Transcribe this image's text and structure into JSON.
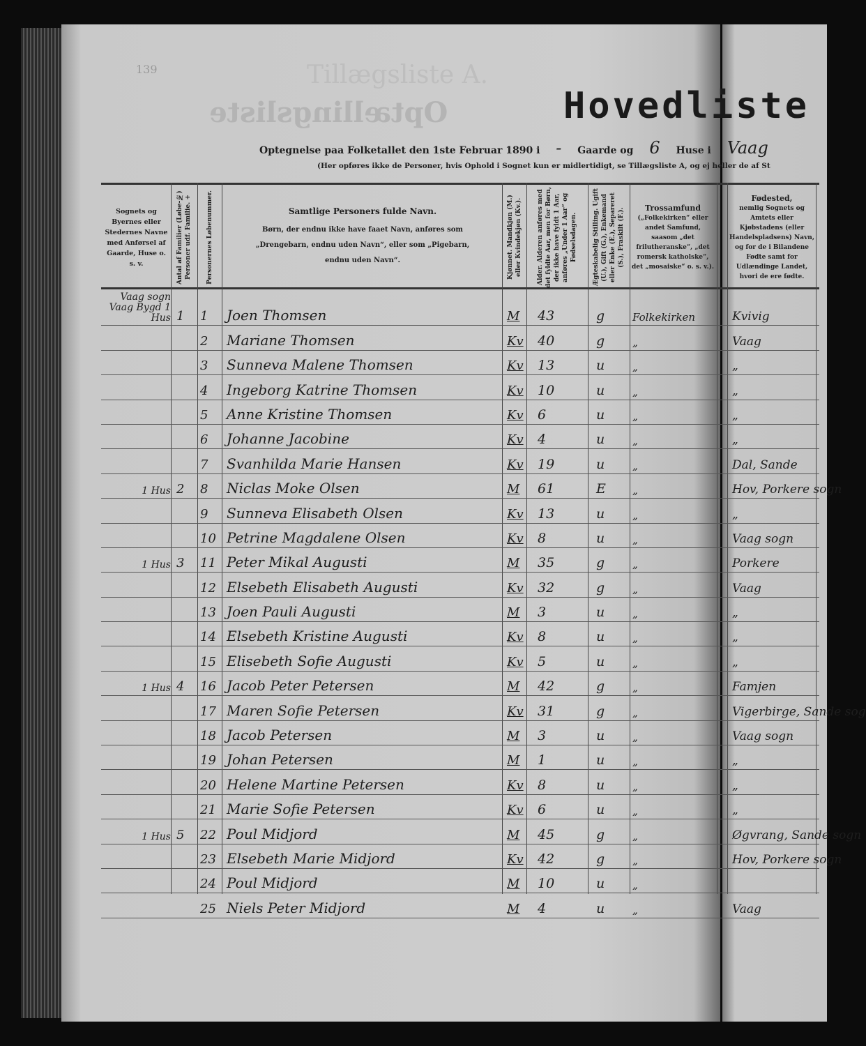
{
  "document": {
    "page_number": "139",
    "title": "Hovedliste",
    "subtitle_printed": "Optegnelse paa Folketallet den 1ste Februar 1890 i",
    "subtitle_dash": "-",
    "gaarde_label": "Gaarde og",
    "huse_count": "6",
    "huse_label": "Huse i",
    "place": "Vaag",
    "note": "(Her opføres ikke de Personer, hvis Ophold i Sognet kun er midlertidigt, se Tillægsliste A, og ej heller de af St",
    "bleed_through": "Optællingsliste",
    "bleed_through_2": "Tillægsliste A."
  },
  "columns": {
    "place": "Sognets og Byernes eller Stedernes Navne med Anførsel af Gaarde, Huse o. s. v.",
    "families": "Antal af Familier (Løbe-№) Personer udf. Familie. +",
    "person_no": "Personernes Løbenummer.",
    "name_title": "Samtlige Personers fulde Navn.",
    "name_note": "Børn, der endnu ikke have faaet Navn, anføres som „Drengebarn, endnu uden Navn“, eller som „Pigebarn, endnu uden Navn“.",
    "sex": "Kjønnet. Mandkjøn (M.) eller Kvindekjøn (Kv.).",
    "age": "Alder. Alderen anføres med det fyldte Aar, men for Børn, der ikke have fyldt 1 Aar, anføres „Under 1 Aar“ og Fødselsdagen.",
    "civil": "Ægteskabelig Stilling. Ugift (U.), Gift (G.), Enkemand eller Enke (E.), Separeret (S.), Fraskilt (F.).",
    "religion_title": "Trossamfund",
    "religion_note": "(„Folkekirken“ eller andet Samfund, saasom „det frilutheranske“, „det romersk katholske“, det „mosaiske“ o. s. v.).",
    "birthplace_title": "Fødested,",
    "birthplace_note": "nemlig Sognets og Amtets eller Kjøbstadens (eller Handelspladsens) Navn, og for de i Bilandene Fødte samt for Udlændinge Landet, hvori de ere fødte."
  },
  "rows": [
    {
      "place": "Vaag sogn  Vaag Bygd 1 Hus",
      "fam": "1",
      "no": "1",
      "name": "Joen Thomsen",
      "sex": "M",
      "age": "43",
      "civil": "g",
      "religion": "Folkekirken",
      "birthplace": "Kvivig"
    },
    {
      "place": "",
      "fam": "",
      "no": "2",
      "name": "Mariane Thomsen",
      "sex": "Kv",
      "age": "40",
      "civil": "g",
      "religion": "„",
      "birthplace": "Vaag"
    },
    {
      "place": "",
      "fam": "",
      "no": "3",
      "name": "Sunneva Malene Thomsen",
      "sex": "Kv",
      "age": "13",
      "civil": "u",
      "religion": "„",
      "birthplace": "„"
    },
    {
      "place": "",
      "fam": "",
      "no": "4",
      "name": "Ingeborg Katrine Thomsen",
      "sex": "Kv",
      "age": "10",
      "civil": "u",
      "religion": "„",
      "birthplace": "„"
    },
    {
      "place": "",
      "fam": "",
      "no": "5",
      "name": "Anne Kristine Thomsen",
      "sex": "Kv",
      "age": "6",
      "civil": "u",
      "religion": "„",
      "birthplace": "„"
    },
    {
      "place": "",
      "fam": "",
      "no": "6",
      "name": "Johanne Jacobine",
      "sex": "Kv",
      "age": "4",
      "civil": "u",
      "religion": "„",
      "birthplace": "„"
    },
    {
      "place": "",
      "fam": "",
      "no": "7",
      "name": "Svanhilda Marie Hansen",
      "sex": "Kv",
      "age": "19",
      "civil": "u",
      "religion": "„",
      "birthplace": "Dal, Sande"
    },
    {
      "place": "1 Hus",
      "fam": "2",
      "no": "8",
      "name": "Niclas Moke Olsen",
      "sex": "M",
      "age": "61",
      "civil": "E",
      "religion": "„",
      "birthplace": "Hov, Porkere sogn"
    },
    {
      "place": "",
      "fam": "",
      "no": "9",
      "name": "Sunneva Elisabeth Olsen",
      "sex": "Kv",
      "age": "13",
      "civil": "u",
      "religion": "„",
      "birthplace": "„"
    },
    {
      "place": "",
      "fam": "",
      "no": "10",
      "name": "Petrine Magdalene Olsen",
      "sex": "Kv",
      "age": "8",
      "civil": "u",
      "religion": "„",
      "birthplace": "Vaag sogn"
    },
    {
      "place": "1 Hus",
      "fam": "3",
      "no": "11",
      "name": "Peter Mikal Augusti",
      "sex": "M",
      "age": "35",
      "civil": "g",
      "religion": "„",
      "birthplace": "Porkere"
    },
    {
      "place": "",
      "fam": "",
      "no": "12",
      "name": "Elsebeth Elisabeth Augusti",
      "sex": "Kv",
      "age": "32",
      "civil": "g",
      "religion": "„",
      "birthplace": "Vaag"
    },
    {
      "place": "",
      "fam": "",
      "no": "13",
      "name": "Joen Pauli Augusti",
      "sex": "M",
      "age": "3",
      "civil": "u",
      "religion": "„",
      "birthplace": "„"
    },
    {
      "place": "",
      "fam": "",
      "no": "14",
      "name": "Elsebeth Kristine Augusti",
      "sex": "Kv",
      "age": "8",
      "civil": "u",
      "religion": "„",
      "birthplace": "„"
    },
    {
      "place": "",
      "fam": "",
      "no": "15",
      "name": "Elisebeth Sofie Augusti",
      "sex": "Kv",
      "age": "5",
      "civil": "u",
      "religion": "„",
      "birthplace": "„"
    },
    {
      "place": "1 Hus",
      "fam": "4",
      "no": "16",
      "name": "Jacob Peter Petersen",
      "sex": "M",
      "age": "42",
      "civil": "g",
      "religion": "„",
      "birthplace": "Famjen"
    },
    {
      "place": "",
      "fam": "",
      "no": "17",
      "name": "Maren Sofie Petersen",
      "sex": "Kv",
      "age": "31",
      "civil": "g",
      "religion": "„",
      "birthplace": "Vigerbirge, Sande sogn"
    },
    {
      "place": "",
      "fam": "",
      "no": "18",
      "name": "Jacob Petersen",
      "sex": "M",
      "age": "3",
      "civil": "u",
      "religion": "„",
      "birthplace": "Vaag sogn"
    },
    {
      "place": "",
      "fam": "",
      "no": "19",
      "name": "Johan Petersen",
      "sex": "M",
      "age": "1",
      "civil": "u",
      "religion": "„",
      "birthplace": "„"
    },
    {
      "place": "",
      "fam": "",
      "no": "20",
      "name": "Helene Martine Petersen",
      "sex": "Kv",
      "age": "8",
      "civil": "u",
      "religion": "„",
      "birthplace": "„"
    },
    {
      "place": "",
      "fam": "",
      "no": "21",
      "name": "Marie Sofie Petersen",
      "sex": "Kv",
      "age": "6",
      "civil": "u",
      "religion": "„",
      "birthplace": "„"
    },
    {
      "place": "1 Hus",
      "fam": "5",
      "no": "22",
      "name": "Poul Midjord",
      "sex": "M",
      "age": "45",
      "civil": "g",
      "religion": "„",
      "birthplace": "Øgvrang, Sande sogn"
    },
    {
      "place": "",
      "fam": "",
      "no": "23",
      "name": "Elsebeth Marie Midjord",
      "sex": "Kv",
      "age": "42",
      "civil": "g",
      "religion": "„",
      "birthplace": "Hov, Porkere sogn"
    },
    {
      "place": "",
      "fam": "",
      "no": "24",
      "name": "Poul Midjord",
      "sex": "M",
      "age": "10",
      "civil": "u",
      "religion": "„",
      "birthplace": ""
    },
    {
      "place": "",
      "fam": "",
      "no": "25",
      "name": "Niels Peter Midjord",
      "sex": "M",
      "age": "4",
      "civil": "u",
      "religion": "„",
      "birthplace": "Vaag"
    }
  ]
}
